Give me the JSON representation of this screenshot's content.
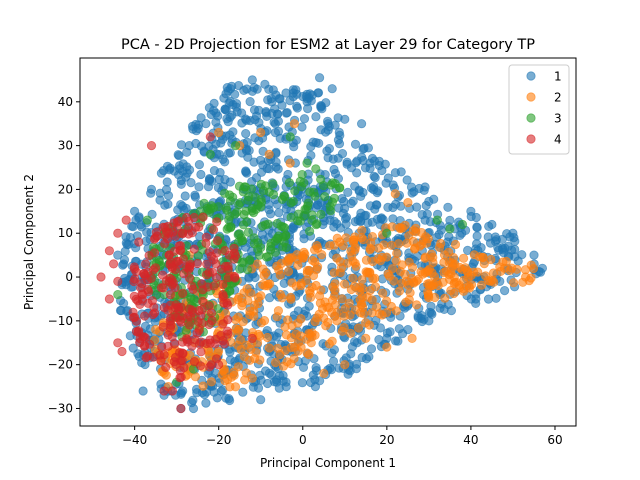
{
  "chart_data": {
    "type": "scatter",
    "title": "PCA - 2D Projection for ESM2 at Layer 29 for Category TP",
    "xlabel": "Principal Component 1",
    "ylabel": "Principal Component 2",
    "xlim": [
      -53,
      65
    ],
    "ylim": [
      -34,
      50
    ],
    "xticks": [
      -40,
      -20,
      0,
      20,
      40,
      60
    ],
    "yticks": [
      -30,
      -20,
      -10,
      0,
      10,
      20,
      30,
      40
    ],
    "xtick_labels": [
      "−40",
      "−20",
      "0",
      "20",
      "40",
      "60"
    ],
    "ytick_labels": [
      "−30",
      "−20",
      "−10",
      "0",
      "10",
      "20",
      "30",
      "40"
    ],
    "grid": false,
    "legend_position": "top-right",
    "marker_alpha": 0.6,
    "series": [
      {
        "name": "1",
        "color": "#1f77b4",
        "region": [
          [
            -44,
            -7
          ],
          [
            -42,
            10
          ],
          [
            -35,
            22
          ],
          [
            -26,
            35
          ],
          [
            -18,
            44
          ],
          [
            -8,
            43
          ],
          [
            3,
            43
          ],
          [
            12,
            33
          ],
          [
            22,
            25
          ],
          [
            36,
            17
          ],
          [
            44,
            13
          ],
          [
            52,
            8
          ],
          [
            58,
            3
          ],
          [
            56,
            -1
          ],
          [
            46,
            -5
          ],
          [
            34,
            -9
          ],
          [
            22,
            -15
          ],
          [
            12,
            -22
          ],
          [
            -2,
            -25
          ],
          [
            -18,
            -29
          ],
          [
            -28,
            -29
          ],
          [
            -38,
            -23
          ]
        ],
        "count": 1400,
        "outliers": [
          [
            -12,
            45
          ],
          [
            -9,
            44
          ],
          [
            4,
            45.5
          ],
          [
            7,
            43
          ],
          [
            -4,
            42
          ],
          [
            1,
            40
          ],
          [
            10,
            36
          ],
          [
            14,
            35
          ],
          [
            -36,
            20
          ],
          [
            -40,
            15
          ],
          [
            -41,
            9
          ],
          [
            -44,
            5
          ],
          [
            40,
            15
          ],
          [
            45,
            12
          ],
          [
            50,
            10
          ],
          [
            55,
            5
          ],
          [
            57,
            2
          ],
          [
            -38,
            -26
          ],
          [
            -33,
            -27
          ],
          [
            -26,
            -30
          ],
          [
            -10,
            -28
          ],
          [
            3,
            -25
          ],
          [
            20,
            -14
          ],
          [
            25,
            -12
          ],
          [
            30,
            -10
          ],
          [
            -29,
            -30
          ],
          [
            6,
            35
          ],
          [
            16,
            26
          ],
          [
            -27,
            30
          ]
        ]
      },
      {
        "name": "2",
        "color": "#ff7f0e",
        "region": [
          [
            -35,
            -12
          ],
          [
            -30,
            -4
          ],
          [
            -20,
            0
          ],
          [
            -8,
            4
          ],
          [
            5,
            8
          ],
          [
            15,
            12
          ],
          [
            25,
            12
          ],
          [
            35,
            8
          ],
          [
            45,
            4
          ],
          [
            58,
            3
          ],
          [
            55,
            -1
          ],
          [
            42,
            -3
          ],
          [
            30,
            -6
          ],
          [
            18,
            -10
          ],
          [
            5,
            -16
          ],
          [
            -6,
            -22
          ],
          [
            -18,
            -26
          ],
          [
            -30,
            -25
          ],
          [
            -36,
            -20
          ]
        ],
        "count": 500,
        "outliers": [
          [
            -20,
            33
          ],
          [
            -10,
            33
          ],
          [
            -2,
            35
          ],
          [
            -15,
            30
          ],
          [
            -8,
            28
          ],
          [
            -3,
            26
          ],
          [
            22,
            19
          ],
          [
            25,
            17
          ],
          [
            14,
            9
          ],
          [
            10,
            -20
          ],
          [
            20,
            -16
          ],
          [
            26,
            -14
          ],
          [
            -32,
            -25
          ],
          [
            -35,
            -12
          ],
          [
            -27,
            5
          ],
          [
            5,
            -22
          ],
          [
            15,
            -14
          ],
          [
            48,
            2
          ],
          [
            53,
            0
          ]
        ]
      },
      {
        "name": "3",
        "color": "#2ca02c",
        "region": [
          [
            -38,
            2
          ],
          [
            -33,
            12
          ],
          [
            -25,
            17
          ],
          [
            -15,
            21
          ],
          [
            -5,
            22
          ],
          [
            4,
            25
          ],
          [
            10,
            20
          ],
          [
            5,
            12
          ],
          [
            -5,
            6
          ],
          [
            -15,
            0
          ],
          [
            -20,
            -8
          ],
          [
            -24,
            -14
          ],
          [
            -30,
            -14
          ],
          [
            -36,
            -6
          ]
        ],
        "count": 260,
        "outliers": [
          [
            -22,
            28
          ],
          [
            -16,
            30
          ],
          [
            -3,
            32
          ],
          [
            1,
            26
          ],
          [
            -37,
            13
          ],
          [
            -33,
            -4
          ],
          [
            32,
            13
          ],
          [
            35,
            11
          ],
          [
            38,
            12
          ],
          [
            -44,
            -4
          ],
          [
            -30,
            -24
          ],
          [
            -26,
            -21
          ],
          [
            20,
            10
          ]
        ]
      },
      {
        "name": "4",
        "color": "#d62728",
        "region": [
          [
            -42,
            -5
          ],
          [
            -40,
            5
          ],
          [
            -35,
            11
          ],
          [
            -27,
            15
          ],
          [
            -20,
            13
          ],
          [
            -16,
            6
          ],
          [
            -16,
            -4
          ],
          [
            -18,
            -14
          ],
          [
            -22,
            -22
          ],
          [
            -30,
            -24
          ],
          [
            -38,
            -18
          ]
        ],
        "count": 240,
        "outliers": [
          [
            -46,
            6
          ],
          [
            -45,
            3
          ],
          [
            -44,
            -1
          ],
          [
            -46,
            -5
          ],
          [
            -44,
            -15
          ],
          [
            -43,
            -17
          ],
          [
            -44,
            10
          ],
          [
            -42,
            13
          ],
          [
            -39,
            8
          ],
          [
            -36,
            30
          ],
          [
            -22,
            32
          ],
          [
            -29,
            -30
          ],
          [
            -33,
            -26
          ],
          [
            -31,
            -26
          ],
          [
            -20,
            -20
          ],
          [
            -12,
            -14
          ],
          [
            -48,
            0
          ]
        ]
      }
    ]
  },
  "legend": {
    "items": [
      {
        "label": "1",
        "color": "#1f77b4"
      },
      {
        "label": "2",
        "color": "#ff7f0e"
      },
      {
        "label": "3",
        "color": "#2ca02c"
      },
      {
        "label": "4",
        "color": "#d62728"
      }
    ]
  }
}
